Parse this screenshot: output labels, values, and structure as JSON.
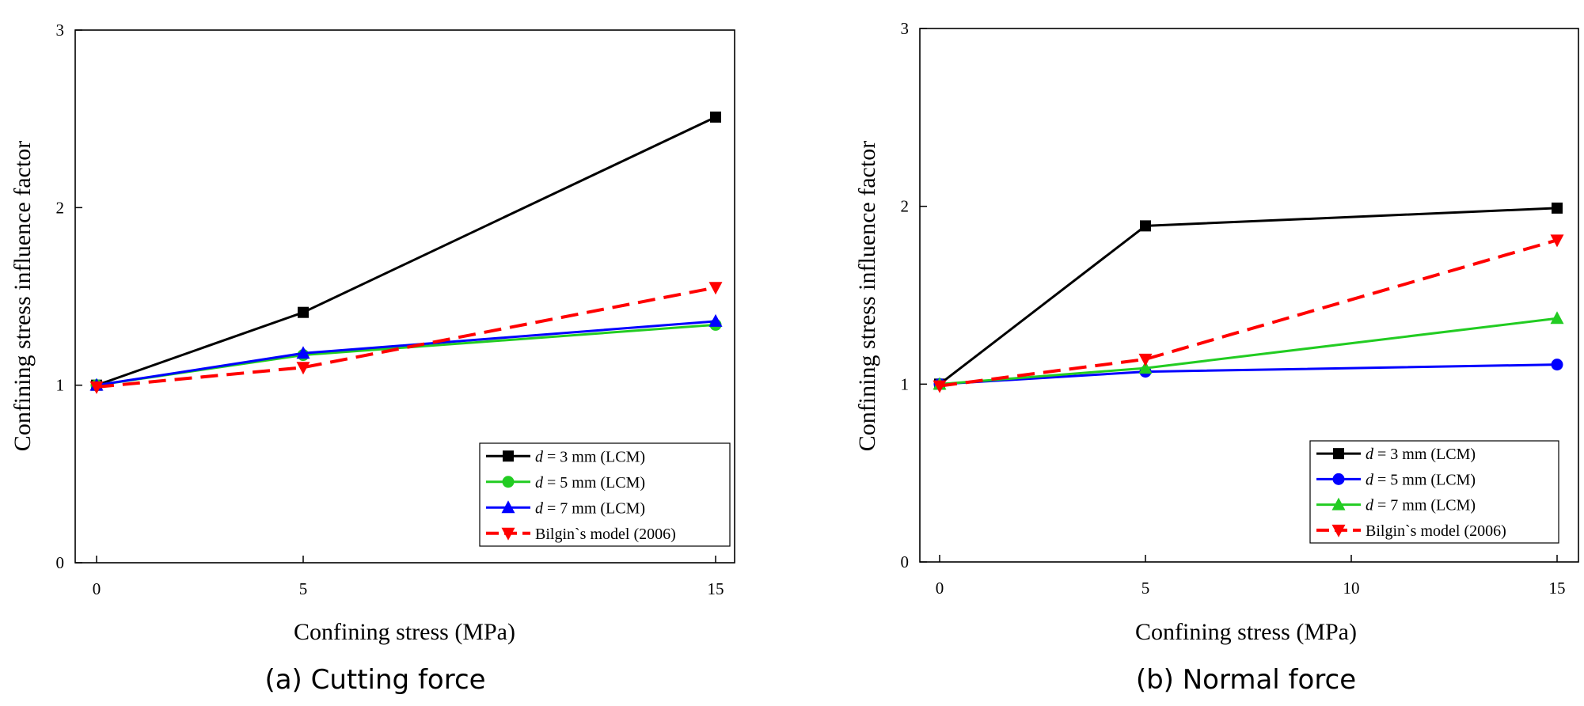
{
  "chart_data": [
    {
      "type": "line",
      "caption": "(a) Cutting force",
      "xlabel": "Confining stress (MPa)",
      "ylabel": "Confining stress influence factor",
      "xticks": [
        "0",
        "5",
        "15"
      ],
      "yticks": [
        "0",
        "1",
        "2",
        "3"
      ],
      "ylim": [
        0,
        3
      ],
      "x_axis_note": "categorical-like axis with ticks at 0, 5, 15",
      "legend_position": "bottom-right",
      "grid": false,
      "series": [
        {
          "name_prefix": "d",
          "name": " = 3 mm (LCM)",
          "color": "#000000",
          "marker": "square",
          "dash": "solid",
          "x": [
            "0",
            "5",
            "15"
          ],
          "values": [
            1.0,
            1.41,
            2.51
          ]
        },
        {
          "name_prefix": "d",
          "name": " = 5 mm (LCM)",
          "color": "#22cc22",
          "marker": "circle",
          "dash": "solid",
          "x": [
            "0",
            "5",
            "15"
          ],
          "values": [
            1.0,
            1.17,
            1.34
          ]
        },
        {
          "name_prefix": "d",
          "name": " = 7 mm (LCM)",
          "color": "#0000ff",
          "marker": "triangle-up",
          "dash": "solid",
          "x": [
            "0",
            "5",
            "15"
          ],
          "values": [
            1.0,
            1.18,
            1.36
          ]
        },
        {
          "name_prefix": "",
          "name": "Bilgin`s model (2006)",
          "color": "#ff0000",
          "marker": "triangle-down",
          "dash": "dashed",
          "x": [
            "0",
            "5",
            "15"
          ],
          "values": [
            0.99,
            1.1,
            1.55
          ]
        }
      ]
    },
    {
      "type": "line",
      "caption": "(b) Normal force",
      "xlabel": "Confining stress (MPa)",
      "ylabel": "Confining stress influence factor",
      "xticks": [
        "0",
        "5",
        "10",
        "15"
      ],
      "yticks": [
        "0",
        "1",
        "2",
        "3"
      ],
      "ylim": [
        0,
        3
      ],
      "xlim": [
        0,
        15
      ],
      "legend_position": "bottom-right",
      "grid": false,
      "series": [
        {
          "name_prefix": "d",
          "name": " = 3 mm (LCM)",
          "color": "#000000",
          "marker": "square",
          "dash": "solid",
          "x": [
            0,
            5,
            15
          ],
          "values": [
            1.0,
            1.89,
            1.99
          ]
        },
        {
          "name_prefix": "d",
          "name": " = 5 mm (LCM)",
          "color": "#0000ff",
          "marker": "circle",
          "dash": "solid",
          "x": [
            0,
            5,
            15
          ],
          "values": [
            1.0,
            1.07,
            1.11
          ]
        },
        {
          "name_prefix": "d",
          "name": " = 7 mm (LCM)",
          "color": "#22cc22",
          "marker": "triangle-up",
          "dash": "solid",
          "x": [
            0,
            5,
            15
          ],
          "values": [
            1.0,
            1.09,
            1.37
          ]
        },
        {
          "name_prefix": "",
          "name": "Bilgin`s model (2006)",
          "color": "#ff0000",
          "marker": "triangle-down",
          "dash": "dashed",
          "x": [
            0,
            5,
            15
          ],
          "values": [
            0.99,
            1.14,
            1.81
          ]
        }
      ]
    }
  ]
}
